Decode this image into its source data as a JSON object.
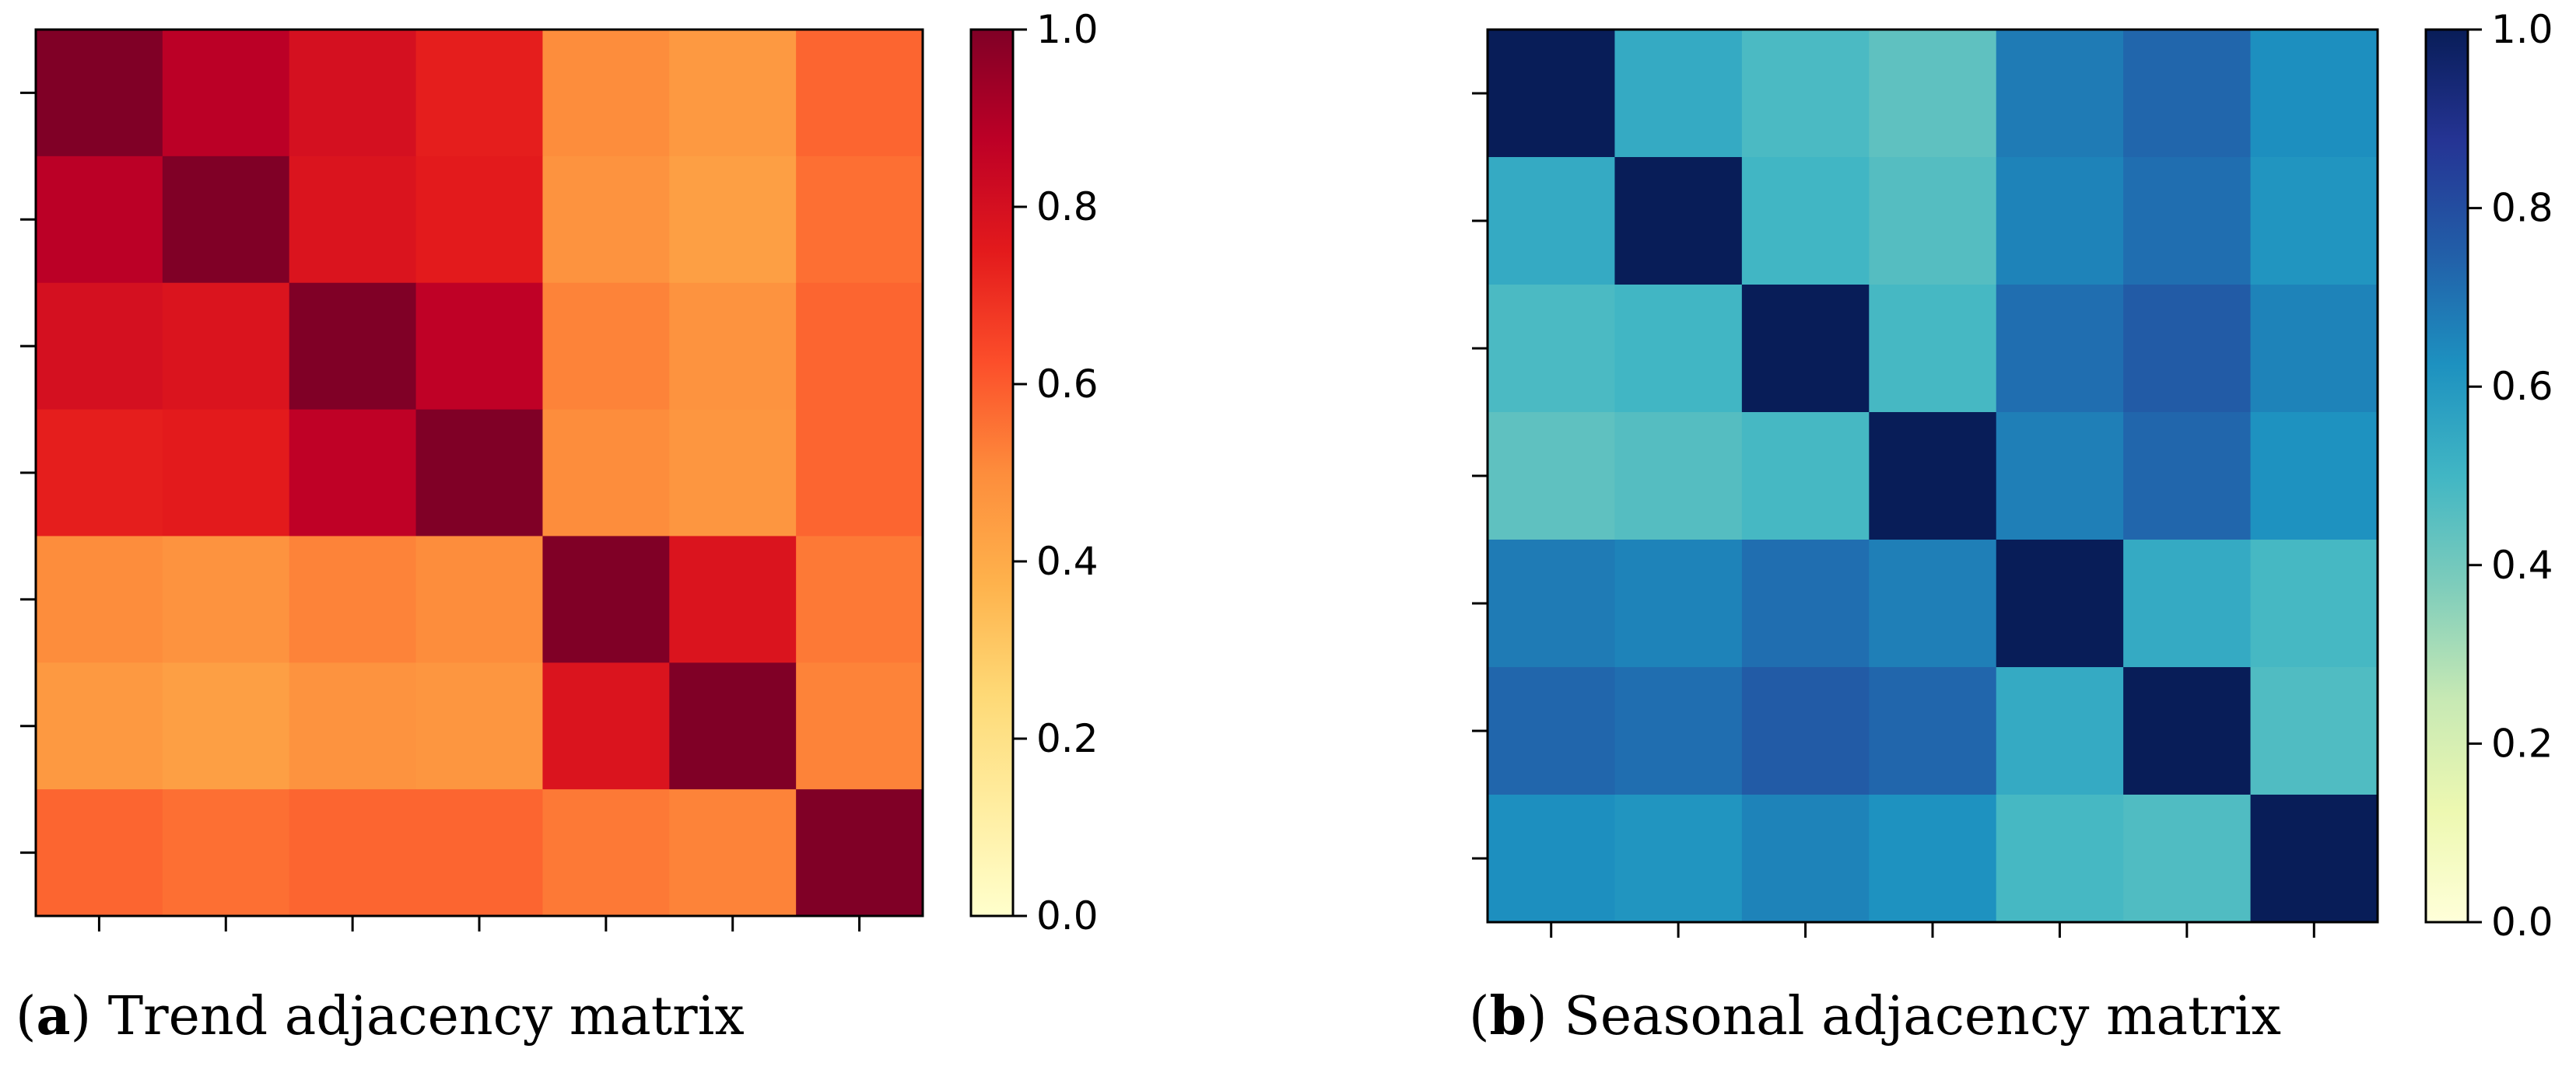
{
  "chart_data": [
    {
      "type": "heatmap",
      "caption_letter": "a",
      "caption_text": "Trend adjacency matrix",
      "colormap": "YlOrRd",
      "colorbar": {
        "min": 0.0,
        "max": 1.0,
        "ticks": [
          "0.0",
          "0.2",
          "0.4",
          "0.6",
          "0.8",
          "1.0"
        ]
      },
      "rows": 7,
      "cols": 7,
      "values": [
        [
          1.0,
          0.88,
          0.8,
          0.74,
          0.5,
          0.46,
          0.58
        ],
        [
          0.88,
          1.0,
          0.78,
          0.75,
          0.48,
          0.44,
          0.56
        ],
        [
          0.8,
          0.78,
          1.0,
          0.87,
          0.52,
          0.48,
          0.58
        ],
        [
          0.74,
          0.75,
          0.87,
          1.0,
          0.5,
          0.47,
          0.58
        ],
        [
          0.5,
          0.48,
          0.52,
          0.5,
          1.0,
          0.78,
          0.54
        ],
        [
          0.46,
          0.44,
          0.48,
          0.47,
          0.78,
          1.0,
          0.52
        ],
        [
          0.58,
          0.56,
          0.58,
          0.58,
          0.54,
          0.52,
          1.0
        ]
      ]
    },
    {
      "type": "heatmap",
      "caption_letter": "b",
      "caption_text": "Seasonal adjacency matrix",
      "colormap": "YlGnBu",
      "colorbar": {
        "min": 0.0,
        "max": 1.0,
        "ticks": [
          "0.0",
          "0.2",
          "0.4",
          "0.6",
          "0.8",
          "1.0"
        ]
      },
      "rows": 7,
      "cols": 7,
      "values": [
        [
          1.0,
          0.54,
          0.48,
          0.44,
          0.68,
          0.73,
          0.63
        ],
        [
          0.54,
          1.0,
          0.5,
          0.46,
          0.66,
          0.71,
          0.61
        ],
        [
          0.48,
          0.5,
          1.0,
          0.49,
          0.71,
          0.76,
          0.66
        ],
        [
          0.44,
          0.46,
          0.49,
          1.0,
          0.67,
          0.73,
          0.62
        ],
        [
          0.68,
          0.66,
          0.71,
          0.67,
          1.0,
          0.54,
          0.49
        ],
        [
          0.73,
          0.71,
          0.76,
          0.73,
          0.54,
          1.0,
          0.47
        ],
        [
          0.63,
          0.61,
          0.66,
          0.62,
          0.49,
          0.47,
          1.0
        ]
      ]
    }
  ]
}
